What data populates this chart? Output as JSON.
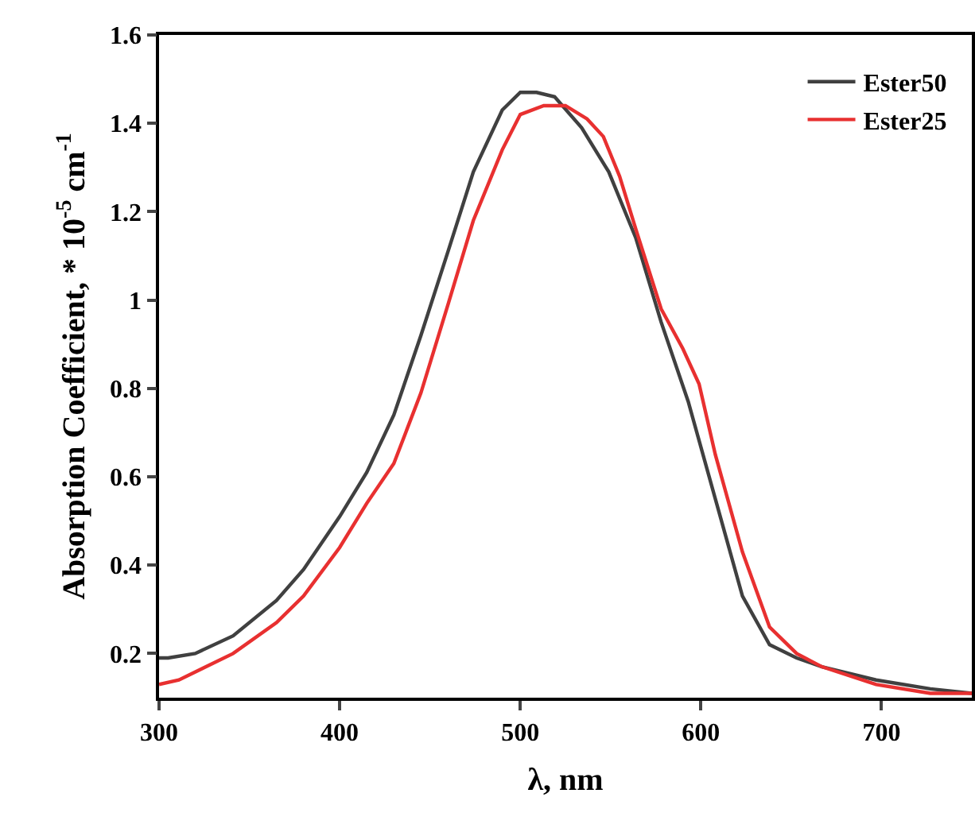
{
  "chart_data": {
    "type": "line",
    "xlabel": "λ, nm",
    "ylabel": "Absorption Coefficient, * 10$^{-5}$ cm$^{-1}$",
    "xlim": [
      300,
      750
    ],
    "xticks": [
      300,
      400,
      500,
      600,
      700
    ],
    "ylim": [
      0.1,
      1.6
    ],
    "yticks": [
      0.2,
      0.4,
      0.6,
      0.8,
      1,
      1.2,
      1.4,
      1.6
    ],
    "grid": false,
    "legend": "top right",
    "marker": "none",
    "line_style": "solid",
    "series": [
      {
        "name": "Ester50",
        "color": "#404040",
        "x": [
          300,
          305,
          320,
          341,
          365,
          380,
          400,
          415,
          430,
          445,
          460,
          474,
          490,
          500,
          509,
          519,
          534,
          549,
          564,
          578,
          593,
          608,
          623,
          638,
          653,
          667,
          697,
          727,
          750
        ],
        "values": [
          0.19,
          0.19,
          0.2,
          0.24,
          0.32,
          0.39,
          0.51,
          0.61,
          0.74,
          0.92,
          1.11,
          1.29,
          1.43,
          1.47,
          1.47,
          1.46,
          1.39,
          1.29,
          1.14,
          0.95,
          0.77,
          0.55,
          0.33,
          0.22,
          0.19,
          0.17,
          0.14,
          0.12,
          0.11
        ]
      },
      {
        "name": "Ester25",
        "color": "#e83030",
        "x": [
          300,
          311,
          326,
          341,
          365,
          380,
          400,
          415,
          430,
          445,
          460,
          474,
          490,
          500,
          513,
          525,
          537,
          546,
          555,
          564,
          578,
          590,
          599,
          608,
          623,
          638,
          653,
          667,
          697,
          727,
          750
        ],
        "values": [
          0.13,
          0.14,
          0.17,
          0.2,
          0.27,
          0.33,
          0.44,
          0.54,
          0.63,
          0.79,
          0.99,
          1.18,
          1.34,
          1.42,
          1.44,
          1.44,
          1.41,
          1.37,
          1.28,
          1.16,
          0.98,
          0.89,
          0.81,
          0.65,
          0.43,
          0.26,
          0.2,
          0.17,
          0.13,
          0.11,
          0.11
        ]
      }
    ]
  }
}
